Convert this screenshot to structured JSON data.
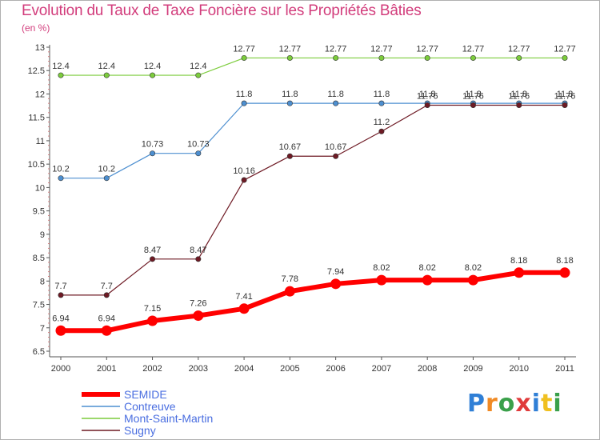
{
  "header": {
    "title": "Evolution du Taux de Taxe Foncière sur les Propriétés Bâties",
    "unit": "(en %)"
  },
  "logo": {
    "text": "Proxiti",
    "colors": [
      "#2f7fd6",
      "#f08a24",
      "#3aa04a",
      "#e03b3b",
      "#2f7fd6",
      "#f0c020",
      "#3aa04a"
    ]
  },
  "chart_data": {
    "type": "line",
    "title": "Evolution du Taux de Taxe Foncière sur les Propriétés Bâties",
    "ylabel": "(en %)",
    "xlabel": "",
    "x": [
      "2000",
      "2001",
      "2002",
      "2003",
      "2004",
      "2005",
      "2006",
      "2007",
      "2008",
      "2009",
      "2010",
      "2011"
    ],
    "ylim": [
      6.5,
      13
    ],
    "yticks": [
      "6.5",
      "7",
      "7.5",
      "8",
      "8.5",
      "9",
      "9.5",
      "10",
      "10.5",
      "11",
      "11.5",
      "12",
      "12.5",
      "13"
    ],
    "grid": false,
    "legend_position": "bottom-left",
    "series": [
      {
        "name": "SEMIDE",
        "color": "#ff0000",
        "values": [
          6.94,
          6.94,
          7.15,
          7.26,
          7.41,
          7.78,
          7.94,
          8.02,
          8.02,
          8.02,
          8.18,
          8.18
        ],
        "labels": [
          "6.94",
          "6.94",
          "7.15",
          "7.26",
          "7.41",
          "7.78",
          "7.94",
          "8.02",
          "8.02",
          "8.02",
          "8.18",
          "8.18"
        ]
      },
      {
        "name": "Contreuve",
        "color": "#4d8fd0",
        "values": [
          10.2,
          10.2,
          10.73,
          10.73,
          11.8,
          11.8,
          11.8,
          11.8,
          11.8,
          11.8,
          11.8,
          11.8
        ],
        "labels": [
          "10.2",
          "10.2",
          "10.73",
          "10.73",
          "11.8",
          "11.8",
          "11.8",
          "11.8",
          "11.8",
          "11.8",
          "11.8",
          "11.8"
        ]
      },
      {
        "name": "Mont-Saint-Martin",
        "color": "#7ccc3c",
        "values": [
          12.4,
          12.4,
          12.4,
          12.4,
          12.77,
          12.77,
          12.77,
          12.77,
          12.77,
          12.77,
          12.77,
          12.77
        ],
        "labels": [
          "12.4",
          "12.4",
          "12.4",
          "12.4",
          "12.77",
          "12.77",
          "12.77",
          "12.77",
          "12.77",
          "12.77",
          "12.77",
          "12.77"
        ]
      },
      {
        "name": "Sugny",
        "color": "#6e1a24",
        "values": [
          7.7,
          7.7,
          8.47,
          8.47,
          10.16,
          10.67,
          10.67,
          11.2,
          11.76,
          11.76,
          11.76,
          11.76
        ],
        "labels": [
          "7.7",
          "7.7",
          "8.47",
          "8.47",
          "10.16",
          "10.67",
          "10.67",
          "11.2",
          "11.76",
          "11.76",
          "11.76",
          "11.76"
        ]
      }
    ]
  }
}
